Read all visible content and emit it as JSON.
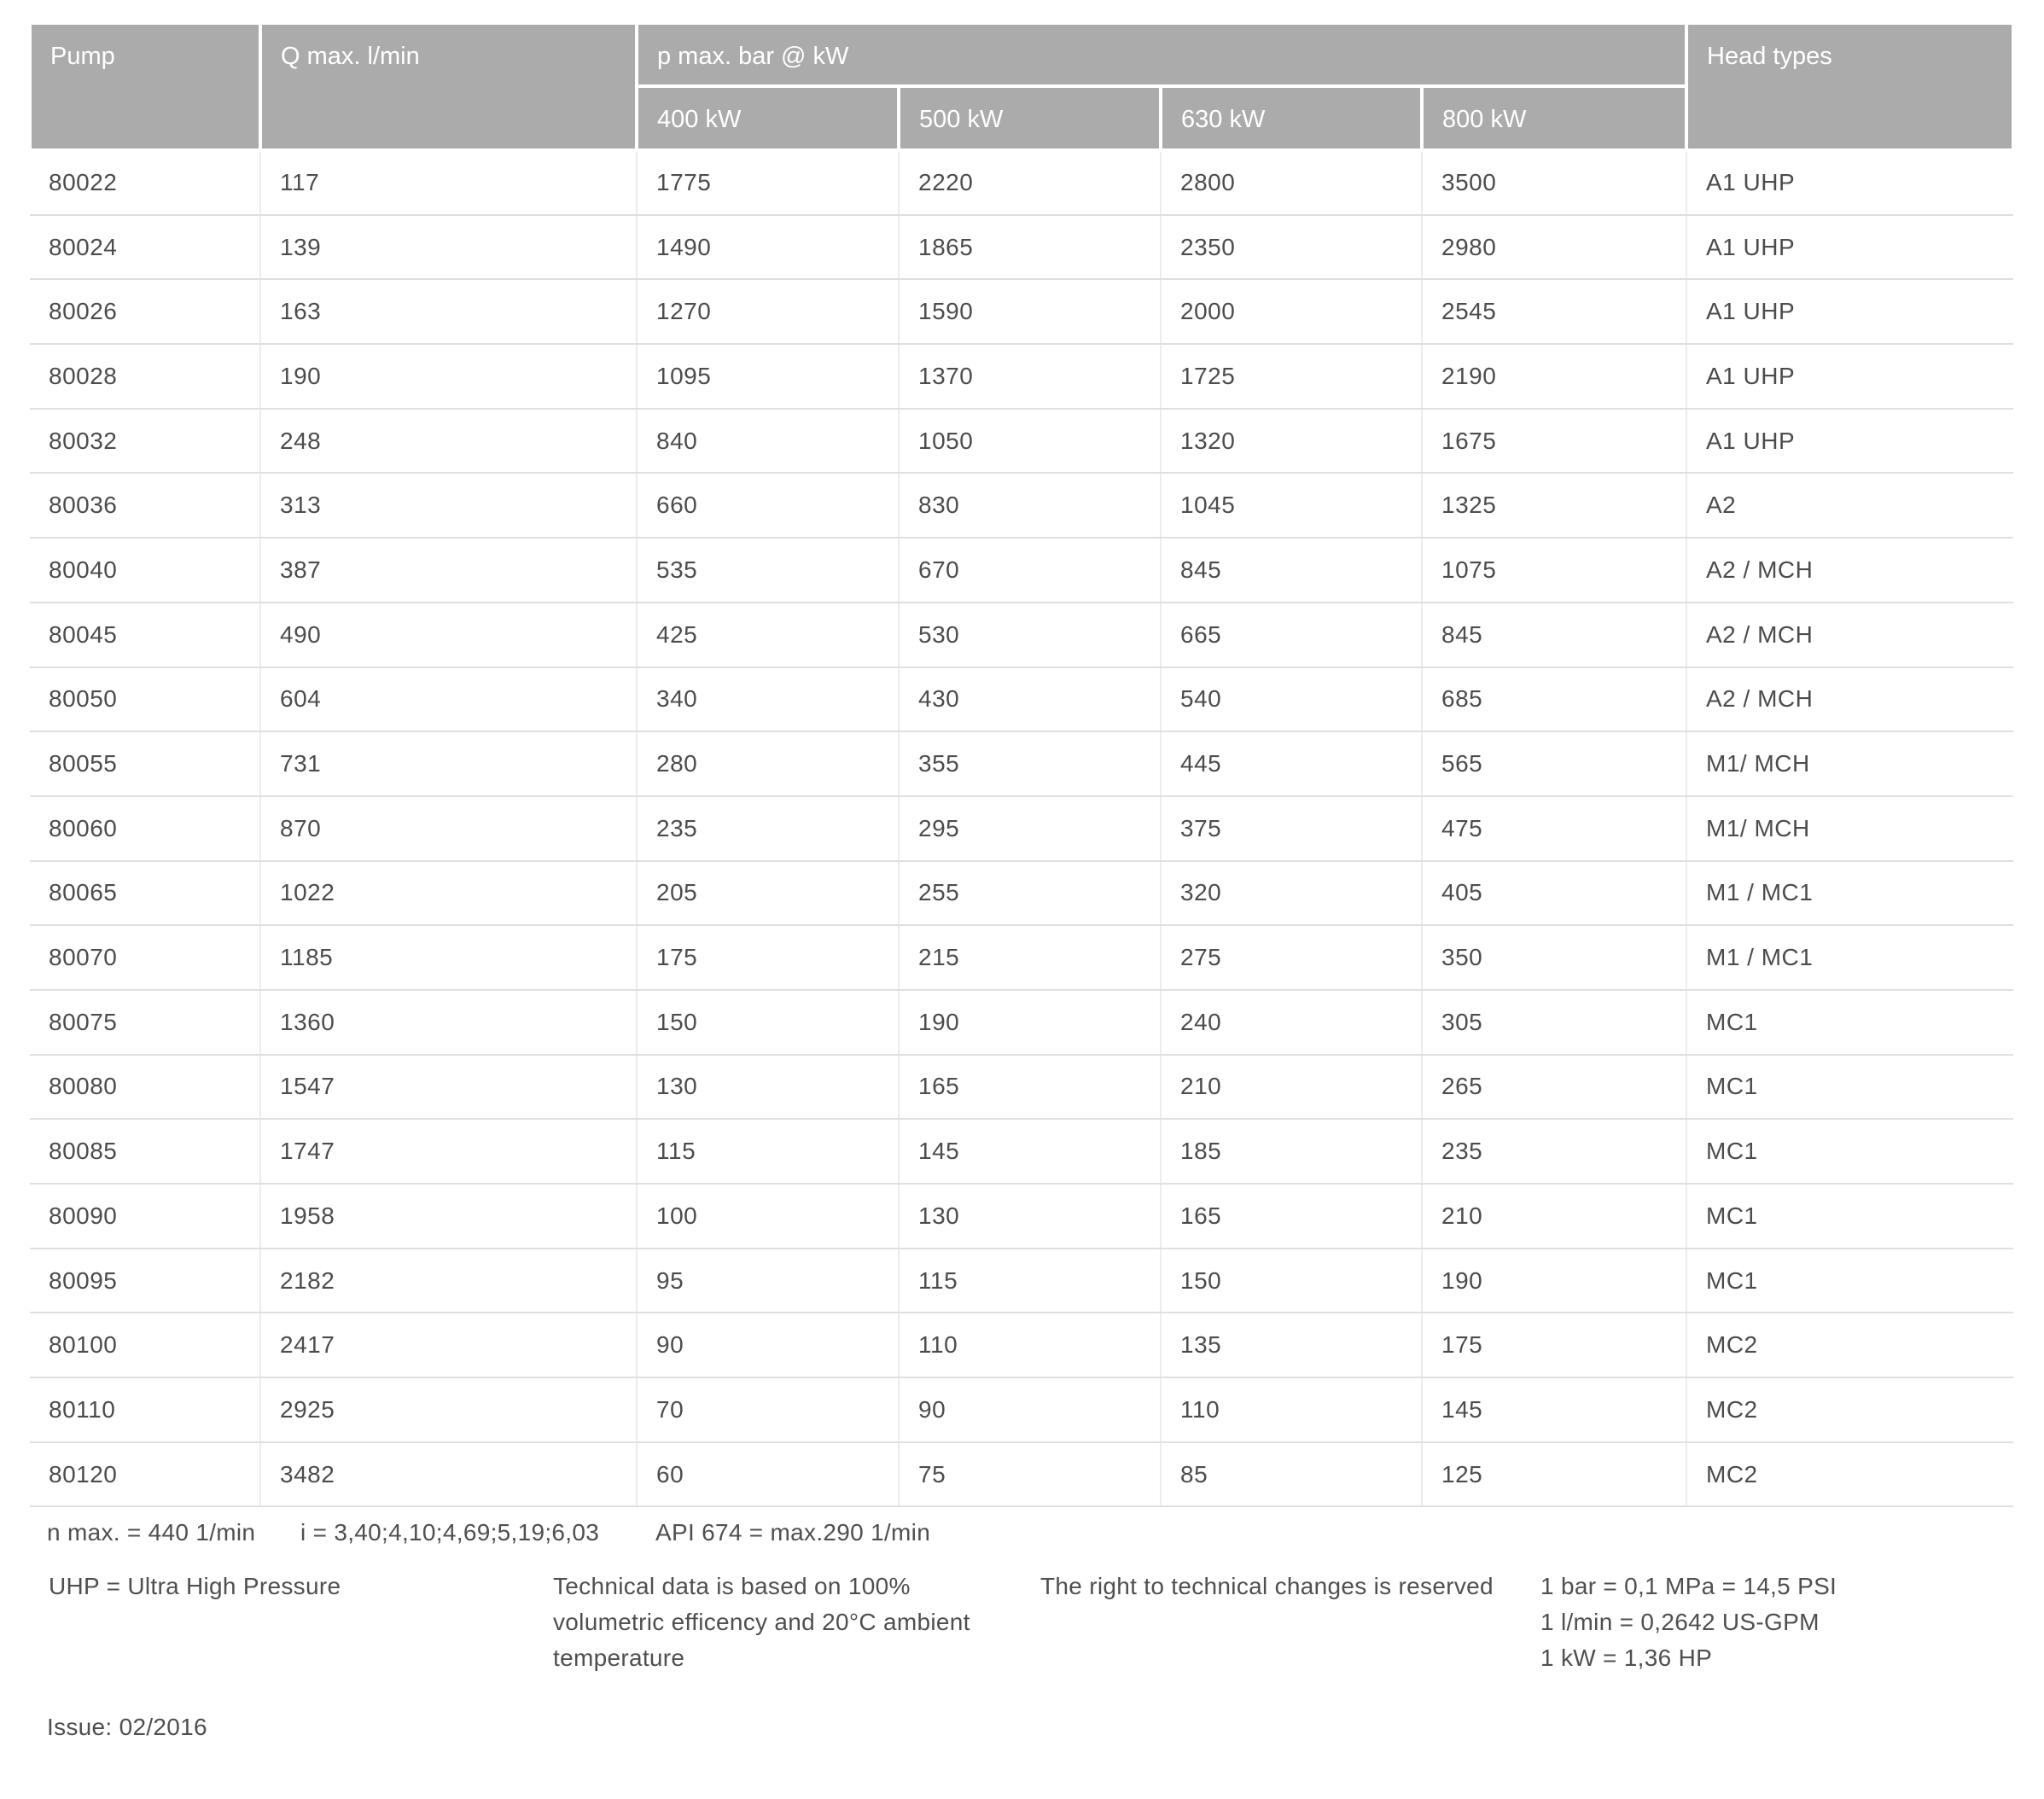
{
  "colors": {
    "header_background": "#ababab",
    "header_text": "#ffffff",
    "body_text": "#4c4c4c",
    "row_separator": "#e0e0e0",
    "column_separator": "#ececec"
  },
  "table": {
    "columns": {
      "pump": "Pump",
      "q_max": "Q max. l/min",
      "p_max_group": "p max. bar @ kW",
      "power_levels": [
        "400 kW",
        "500 kW",
        "630 kW",
        "800 kW"
      ],
      "head_types": "Head types"
    },
    "rows": [
      {
        "pump": "80022",
        "q_max": "117",
        "p": [
          "1775",
          "2220",
          "2800",
          "3500"
        ],
        "head": "A1 UHP"
      },
      {
        "pump": "80024",
        "q_max": "139",
        "p": [
          "1490",
          "1865",
          "2350",
          "2980"
        ],
        "head": "A1 UHP"
      },
      {
        "pump": "80026",
        "q_max": "163",
        "p": [
          "1270",
          "1590",
          "2000",
          "2545"
        ],
        "head": "A1 UHP"
      },
      {
        "pump": "80028",
        "q_max": "190",
        "p": [
          "1095",
          "1370",
          "1725",
          "2190"
        ],
        "head": "A1 UHP"
      },
      {
        "pump": "80032",
        "q_max": "248",
        "p": [
          "840",
          "1050",
          "1320",
          "1675"
        ],
        "head": "A1 UHP"
      },
      {
        "pump": "80036",
        "q_max": "313",
        "p": [
          "660",
          "830",
          "1045",
          "1325"
        ],
        "head": "A2"
      },
      {
        "pump": "80040",
        "q_max": "387",
        "p": [
          "535",
          "670",
          "845",
          "1075"
        ],
        "head": "A2 / MCH"
      },
      {
        "pump": "80045",
        "q_max": "490",
        "p": [
          "425",
          "530",
          "665",
          "845"
        ],
        "head": "A2 / MCH"
      },
      {
        "pump": "80050",
        "q_max": "604",
        "p": [
          "340",
          "430",
          "540",
          "685"
        ],
        "head": "A2 / MCH"
      },
      {
        "pump": "80055",
        "q_max": "731",
        "p": [
          "280",
          "355",
          "445",
          "565"
        ],
        "head": "M1/ MCH"
      },
      {
        "pump": "80060",
        "q_max": "870",
        "p": [
          "235",
          "295",
          "375",
          "475"
        ],
        "head": "M1/ MCH"
      },
      {
        "pump": "80065",
        "q_max": "1022",
        "p": [
          "205",
          "255",
          "320",
          "405"
        ],
        "head": "M1 / MC1"
      },
      {
        "pump": "80070",
        "q_max": "1185",
        "p": [
          "175",
          "215",
          "275",
          "350"
        ],
        "head": "M1 / MC1"
      },
      {
        "pump": "80075",
        "q_max": "1360",
        "p": [
          "150",
          "190",
          "240",
          "305"
        ],
        "head": "MC1"
      },
      {
        "pump": "80080",
        "q_max": "1547",
        "p": [
          "130",
          "165",
          "210",
          "265"
        ],
        "head": "MC1"
      },
      {
        "pump": "80085",
        "q_max": "1747",
        "p": [
          "115",
          "145",
          "185",
          "235"
        ],
        "head": "MC1"
      },
      {
        "pump": "80090",
        "q_max": "1958",
        "p": [
          "100",
          "130",
          "165",
          "210"
        ],
        "head": "MC1"
      },
      {
        "pump": "80095",
        "q_max": "2182",
        "p": [
          "95",
          "115",
          "150",
          "190"
        ],
        "head": "MC1"
      },
      {
        "pump": "80100",
        "q_max": "2417",
        "p": [
          "90",
          "110",
          "135",
          "175"
        ],
        "head": "MC2"
      },
      {
        "pump": "80110",
        "q_max": "2925",
        "p": [
          "70",
          "90",
          "110",
          "145"
        ],
        "head": "MC2"
      },
      {
        "pump": "80120",
        "q_max": "3482",
        "p": [
          "60",
          "75",
          "85",
          "125"
        ],
        "head": "MC2"
      }
    ]
  },
  "footnotes": {
    "n_max": "n max. = 440 1/min",
    "gear_ratios": "i = 3,40;4,10;4,69;5,19;6,03",
    "api": "API 674 = max.290 1/min",
    "uhp": "UHP = Ultra High Pressure",
    "technical_basis": "Technical data is based on 100%\nvolumetric efficency and 20°C ambient\ntemperature",
    "rights": "The right to technical changes is reserved",
    "conversions": "1 bar = 0,1 MPa = 14,5 PSI\n1 l/min = 0,2642 US-GPM\n1 kW = 1,36 HP",
    "issue": "Issue: 02/2016"
  }
}
